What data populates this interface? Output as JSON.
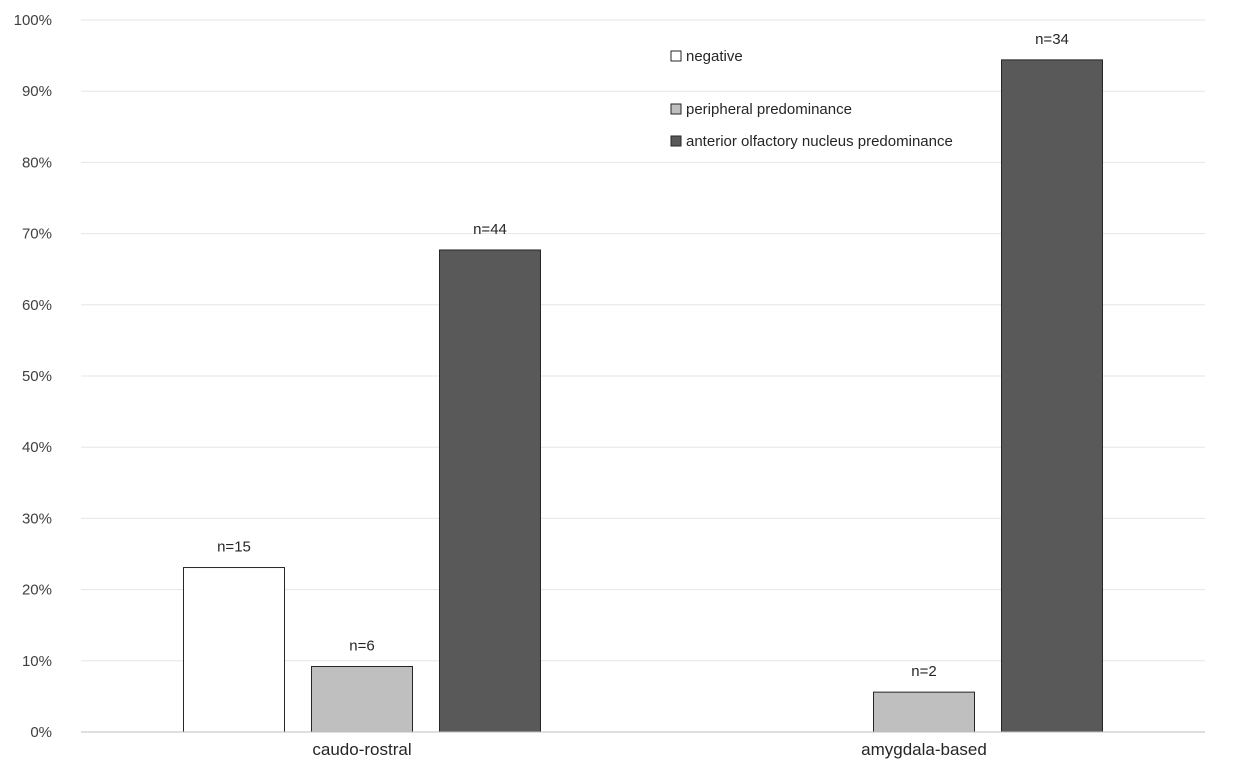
{
  "chart_data": {
    "type": "bar",
    "title": "",
    "xlabel": "",
    "ylabel": "",
    "ylim": [
      0,
      100
    ],
    "y_ticks": [
      "0%",
      "10%",
      "20%",
      "30%",
      "40%",
      "50%",
      "60%",
      "70%",
      "80%",
      "90%",
      "100%"
    ],
    "y_unit": "%",
    "grid": true,
    "legend_position": "top-center",
    "categories": [
      "caudo-rostral",
      "amygdala-based"
    ],
    "series": [
      {
        "name": "negative",
        "color": "#ffffff",
        "values": [
          23.1,
          0
        ],
        "labels": [
          "n=15",
          ""
        ]
      },
      {
        "name": "peripheral predominance",
        "color": "#bfbfbf",
        "values": [
          9.2,
          5.6
        ],
        "labels": [
          "n=6",
          "n=2"
        ]
      },
      {
        "name": "anterior olfactory nucleus predominance",
        "color": "#595959",
        "values": [
          67.7,
          94.4
        ],
        "labels": [
          "n=44",
          "n=34"
        ]
      }
    ]
  }
}
